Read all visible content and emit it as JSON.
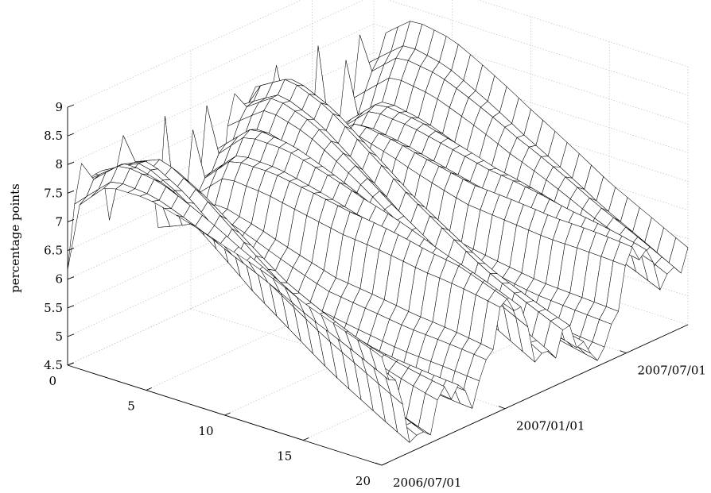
{
  "chart_data": {
    "type": "surface",
    "title": "",
    "zlabel": "percentage points",
    "zlim": [
      4.5,
      9
    ],
    "z_ticks": [
      "4.5",
      "5",
      "5.5",
      "6",
      "6.5",
      "7",
      "7.5",
      "8",
      "8.5",
      "9"
    ],
    "maturity_range": [
      0,
      20
    ],
    "maturity_ticks": [
      "0",
      "5",
      "10",
      "15",
      "20"
    ],
    "date_range": [
      "2006/07/01",
      "2007/10/01"
    ],
    "date_ticks": [
      "2006/07/01",
      "2007/01/01",
      "2007/07/01"
    ],
    "grid": true,
    "surface_colors": {
      "fill": "#ffffff",
      "edge": "#000000"
    },
    "surface_profile": [
      {
        "maturity": 0.0,
        "z_range": [
          5.8,
          8.2
        ]
      },
      {
        "maturity": 2.5,
        "z_range": [
          6.3,
          8.6
        ]
      },
      {
        "maturity": 5.0,
        "z_range": [
          6.0,
          8.4
        ]
      },
      {
        "maturity": 10.0,
        "z_range": [
          5.3,
          7.6
        ]
      },
      {
        "maturity": 15.0,
        "z_range": [
          4.9,
          6.9
        ]
      },
      {
        "maturity": 20.0,
        "z_range": [
          4.6,
          6.4
        ]
      }
    ]
  }
}
